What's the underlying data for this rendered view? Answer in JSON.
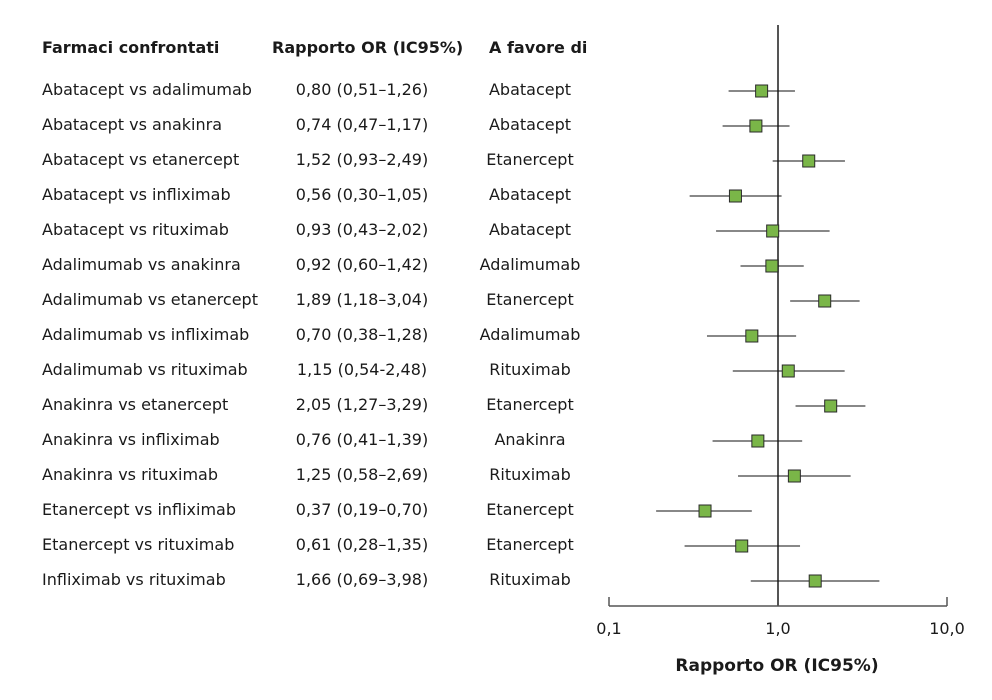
{
  "headers": {
    "comparison": "Farmaci confrontati",
    "ratio": "Rapporto OR (IC95%)",
    "favors": "A favore di"
  },
  "chart_data": {
    "type": "forest",
    "xscale": "log",
    "xlim": [
      0.1,
      10.0
    ],
    "reference_line": 1.0,
    "xlabel": "Rapporto OR (IC95%)",
    "ticks": [
      {
        "value": 0.1,
        "label": "0,1"
      },
      {
        "value": 1.0,
        "label": "1,0"
      },
      {
        "value": 10.0,
        "label": "10,0"
      }
    ],
    "marker_color": "#7ab648",
    "rows": [
      {
        "comparison": "Abatacept vs adalimumab",
        "ratio_text": "0,80 (0,51–1,26)",
        "favors": "Abatacept",
        "or": 0.8,
        "lo": 0.51,
        "hi": 1.26
      },
      {
        "comparison": "Abatacept vs anakinra",
        "ratio_text": "0,74 (0,47–1,17)",
        "favors": "Abatacept",
        "or": 0.74,
        "lo": 0.47,
        "hi": 1.17
      },
      {
        "comparison": "Abatacept vs etanercept",
        "ratio_text": "1,52 (0,93–2,49)",
        "favors": "Etanercept",
        "or": 1.52,
        "lo": 0.93,
        "hi": 2.49
      },
      {
        "comparison": "Abatacept vs infliximab",
        "ratio_text": "0,56 (0,30–1,05)",
        "favors": "Abatacept",
        "or": 0.56,
        "lo": 0.3,
        "hi": 1.05
      },
      {
        "comparison": "Abatacept vs rituximab",
        "ratio_text": "0,93 (0,43–2,02)",
        "favors": "Abatacept",
        "or": 0.93,
        "lo": 0.43,
        "hi": 2.02
      },
      {
        "comparison": "Adalimumab vs anakinra",
        "ratio_text": "0,92 (0,60–1,42)",
        "favors": "Adalimumab",
        "or": 0.92,
        "lo": 0.6,
        "hi": 1.42
      },
      {
        "comparison": "Adalimumab vs etanercept",
        "ratio_text": "1,89 (1,18–3,04)",
        "favors": "Etanercept",
        "or": 1.89,
        "lo": 1.18,
        "hi": 3.04
      },
      {
        "comparison": "Adalimumab vs infliximab",
        "ratio_text": "0,70 (0,38–1,28)",
        "favors": "Adalimumab",
        "or": 0.7,
        "lo": 0.38,
        "hi": 1.28
      },
      {
        "comparison": "Adalimumab vs rituximab",
        "ratio_text": "1,15 (0,54-2,48)",
        "favors": "Rituximab",
        "or": 1.15,
        "lo": 0.54,
        "hi": 2.48
      },
      {
        "comparison": "Anakinra vs etanercept",
        "ratio_text": "2,05 (1,27–3,29)",
        "favors": "Etanercept",
        "or": 2.05,
        "lo": 1.27,
        "hi": 3.29
      },
      {
        "comparison": "Anakinra vs infliximab",
        "ratio_text": "0,76 (0,41–1,39)",
        "favors": "Anakinra",
        "or": 0.76,
        "lo": 0.41,
        "hi": 1.39
      },
      {
        "comparison": "Anakinra vs rituximab",
        "ratio_text": "1,25 (0,58–2,69)",
        "favors": "Rituximab",
        "or": 1.25,
        "lo": 0.58,
        "hi": 2.69
      },
      {
        "comparison": "Etanercept vs infliximab",
        "ratio_text": "0,37 (0,19–0,70)",
        "favors": "Etanercept",
        "or": 0.37,
        "lo": 0.19,
        "hi": 0.7
      },
      {
        "comparison": "Etanercept vs rituximab",
        "ratio_text": "0,61 (0,28–1,35)",
        "favors": "Etanercept",
        "or": 0.61,
        "lo": 0.28,
        "hi": 1.35
      },
      {
        "comparison": "Infliximab vs rituximab",
        "ratio_text": "1,66 (0,69–3,98)",
        "favors": "Rituximab",
        "or": 1.66,
        "lo": 0.69,
        "hi": 3.98
      }
    ]
  }
}
